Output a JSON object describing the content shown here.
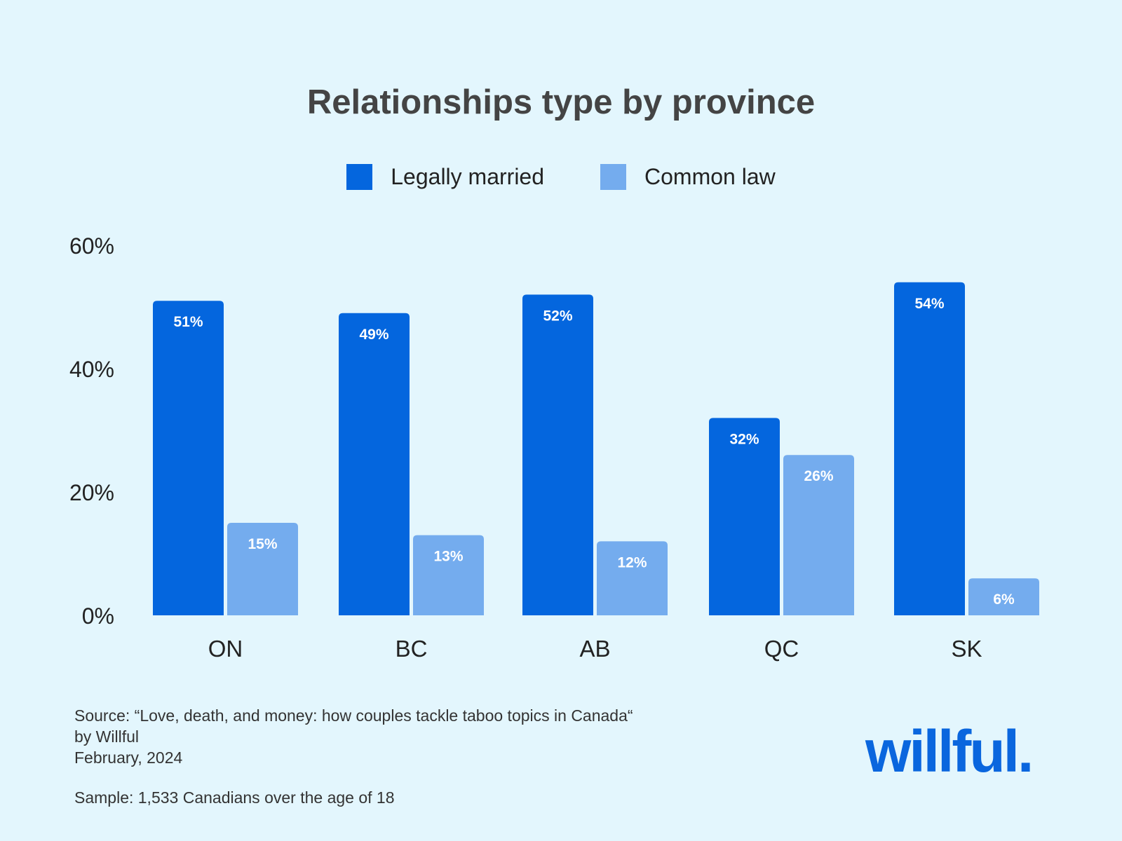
{
  "chart_data": {
    "type": "bar",
    "title": "Relationships type by province",
    "categories": [
      "ON",
      "BC",
      "AB",
      "QC",
      "SK"
    ],
    "series": [
      {
        "name": "Legally married",
        "values": [
          51,
          49,
          52,
          32,
          54
        ],
        "labels": [
          "51%",
          "49%",
          "52%",
          "32%",
          "54%"
        ],
        "color": "#0466de"
      },
      {
        "name": "Common law",
        "values": [
          15,
          13,
          12,
          26,
          6
        ],
        "labels": [
          "15%",
          "13%",
          "12%",
          "26%",
          "6%"
        ],
        "color": "#74acee"
      }
    ],
    "yticks": [
      {
        "value": 0,
        "label": "0%"
      },
      {
        "value": 20,
        "label": "20%"
      },
      {
        "value": 40,
        "label": "40%"
      },
      {
        "value": 60,
        "label": "60%"
      }
    ],
    "ylim": [
      0,
      60
    ],
    "grid": false,
    "legend_position": "top-center"
  },
  "footer": {
    "source_lines": [
      "Source: “Love, death, and money: how couples tackle taboo topics in Canada“",
      "by Willful",
      "February, 2024"
    ],
    "sample": "Sample: 1,533 Canadians over the age of 18"
  },
  "logo": {
    "text": "willful."
  },
  "colors": {
    "background": "#e3f6fd",
    "married": "#0466de",
    "common_law": "#74acee",
    "logo": "#0a66de"
  }
}
